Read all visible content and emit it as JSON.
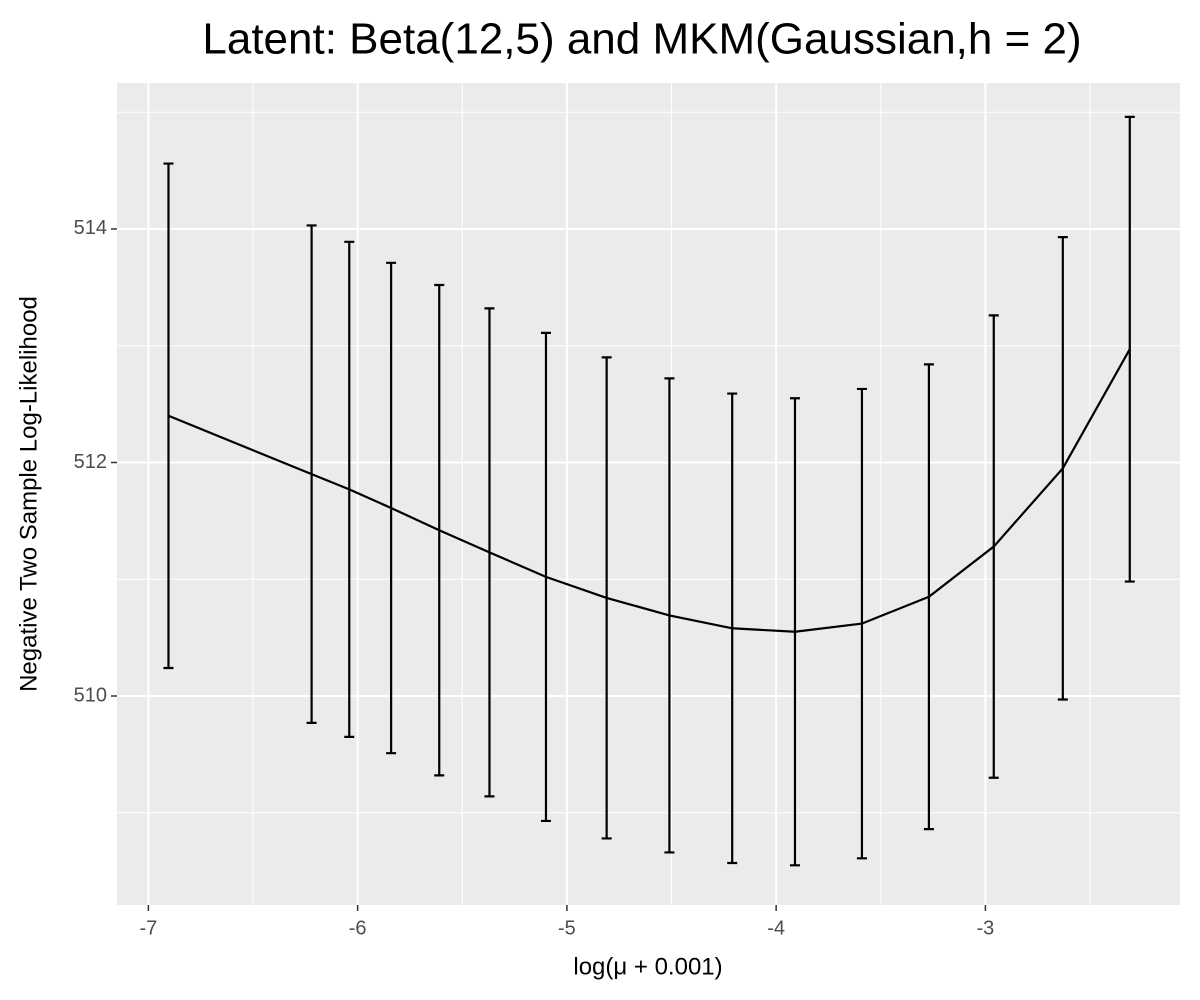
{
  "chart_data": {
    "type": "line_errorbar",
    "title": "Latent: Beta(12,5) and MKM(Gaussian,h = 2)",
    "x_label": "log(μ + 0.001)",
    "y_label": "Negative Two Sample Log-Likelihood",
    "x": [
      -6.904,
      -6.22,
      -6.04,
      -5.84,
      -5.61,
      -5.37,
      -5.1,
      -4.81,
      -4.51,
      -4.21,
      -3.91,
      -3.59,
      -3.27,
      -2.96,
      -2.63,
      -2.31
    ],
    "values": [
      512.4,
      511.9,
      511.77,
      511.61,
      511.42,
      511.23,
      511.02,
      510.84,
      510.69,
      510.58,
      510.55,
      510.62,
      510.85,
      511.28,
      511.95,
      512.97
    ],
    "errors": [
      2.16,
      2.13,
      2.12,
      2.1,
      2.1,
      2.09,
      2.09,
      2.06,
      2.03,
      2.01,
      2.0,
      2.01,
      1.99,
      1.98,
      1.98,
      1.99
    ],
    "color": "#000000",
    "xlim": [
      -7.15,
      -2.07
    ],
    "ylim": [
      508.21,
      515.25
    ],
    "xticks": [
      -7,
      -6,
      -5,
      -4,
      -3
    ],
    "yticks": [
      510,
      512,
      514
    ],
    "grid": true,
    "minor_grid": true
  }
}
